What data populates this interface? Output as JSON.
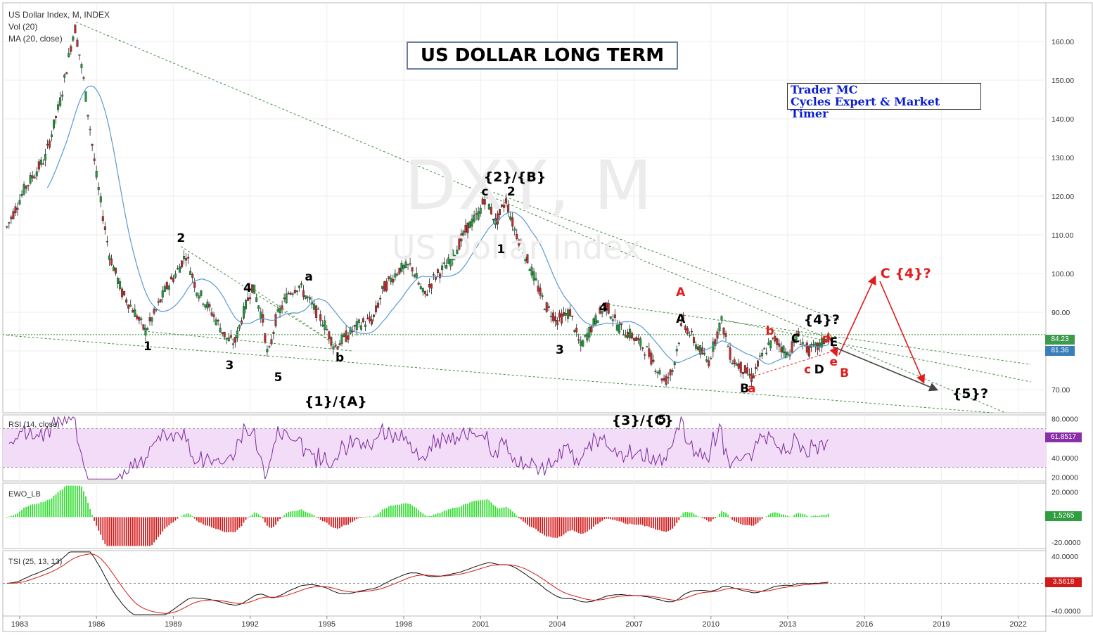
{
  "header": {
    "line1": "US Dollar Index, M, INDEX",
    "line2": "Vol (20)",
    "line3": "MA (20, close)"
  },
  "title": "US DOLLAR LONG TERM",
  "author": {
    "line1": "Trader MC",
    "line2": "Cycles Expert & Market Timer"
  },
  "watermark": {
    "symbol": "DXY, M",
    "name": "US Dollar Index"
  },
  "colors": {
    "bull": "#1e9e3a",
    "bear": "#c22b2b",
    "ma": "#5a9ad0",
    "trend": "#3d8a3d",
    "rsi": "#7a2b9a",
    "rsi_band": "#f3dcf7",
    "tsi": "#111111",
    "tsi_signal": "#d21a1a",
    "ewo_pos": "#33dd33",
    "ewo_neg": "#d21a1a",
    "projection_red": "#e21c1c",
    "projection_gray": "#444444"
  },
  "chart_data": [
    {
      "type": "candlestick",
      "name": "US Dollar Index",
      "x_labels": [
        "1983",
        "1986",
        "1989",
        "1992",
        "1995",
        "1998",
        "2001",
        "2004",
        "2007",
        "2010",
        "2013",
        "2016",
        "2019",
        "2022"
      ],
      "y_ticks": [
        "160.00",
        "150.00",
        "140.00",
        "130.00",
        "120.00",
        "110.00",
        "100.00",
        "90.00",
        "80.00",
        "70.00"
      ],
      "ylim": [
        64,
        170
      ],
      "price_path": [
        [
          1982.5,
          112
        ],
        [
          1983.2,
          122
        ],
        [
          1984,
          130
        ],
        [
          1984.6,
          145
        ],
        [
          1985.15,
          164
        ],
        [
          1985.5,
          150
        ],
        [
          1986,
          125
        ],
        [
          1986.5,
          105
        ],
        [
          1987,
          95
        ],
        [
          1987.5,
          90
        ],
        [
          1987.9,
          85
        ],
        [
          1988.3,
          90
        ],
        [
          1988.7,
          96
        ],
        [
          1989.1,
          100
        ],
        [
          1989.5,
          105
        ],
        [
          1989.9,
          96
        ],
        [
          1990.5,
          90
        ],
        [
          1991.1,
          83
        ],
        [
          1991.4,
          82
        ],
        [
          1991.7,
          89
        ],
        [
          1992.1,
          97
        ],
        [
          1992.5,
          88
        ],
        [
          1992.7,
          78
        ],
        [
          1993,
          88
        ],
        [
          1993.5,
          95
        ],
        [
          1993.9,
          97
        ],
        [
          1994.4,
          92
        ],
        [
          1994.9,
          87
        ],
        [
          1995.3,
          81
        ],
        [
          1995.8,
          84
        ],
        [
          1996.3,
          87
        ],
        [
          1996.8,
          88
        ],
        [
          1997.2,
          96
        ],
        [
          1997.8,
          101
        ],
        [
          1998.3,
          102
        ],
        [
          1998.8,
          94
        ],
        [
          1999.2,
          99
        ],
        [
          1999.8,
          103
        ],
        [
          2000.5,
          112
        ],
        [
          2000.9,
          115
        ],
        [
          2001.2,
          120
        ],
        [
          2001.6,
          113
        ],
        [
          2002,
          119
        ],
        [
          2002.3,
          112
        ],
        [
          2002.8,
          104
        ],
        [
          2003.5,
          92
        ],
        [
          2004,
          88
        ],
        [
          2004.5,
          90
        ],
        [
          2004.9,
          81
        ],
        [
          2005.5,
          88
        ],
        [
          2005.9,
          92
        ],
        [
          2006.4,
          86
        ],
        [
          2006.9,
          84
        ],
        [
          2007.5,
          80
        ],
        [
          2008.2,
          72
        ],
        [
          2008.5,
          75
        ],
        [
          2008.9,
          88
        ],
        [
          2009.2,
          84
        ],
        [
          2009.9,
          77
        ],
        [
          2010.4,
          88
        ],
        [
          2010.8,
          78
        ],
        [
          2011.3,
          75
        ],
        [
          2011.6,
          73
        ],
        [
          2012.1,
          80
        ],
        [
          2012.5,
          83
        ],
        [
          2013,
          79
        ],
        [
          2013.4,
          84
        ],
        [
          2013.8,
          80
        ],
        [
          2014.2,
          81
        ],
        [
          2014.6,
          84
        ]
      ],
      "ma_last": "81.36",
      "last_price": "84.23",
      "annotations": [
        {
          "text": "{2}/{B}",
          "x": 2002.0,
          "y": 125,
          "color": "black"
        },
        {
          "text": "{1}/{A}",
          "x": 1995.0,
          "y": 67,
          "color": "black"
        },
        {
          "text": "{3}/{C}",
          "x": 2007.0,
          "y": 62,
          "color": "black"
        },
        {
          "text": "{4}?",
          "x": 2014.5,
          "y": 88,
          "color": "black"
        },
        {
          "text": "{5}?",
          "x": 2020.3,
          "y": 69,
          "color": "black"
        },
        {
          "text": "C {4}?",
          "x": 2017.5,
          "y": 100,
          "color": "red"
        },
        {
          "text": "1",
          "x": 1988.0,
          "y": 81,
          "color": "black"
        },
        {
          "text": "2",
          "x": 1989.3,
          "y": 109,
          "color": "black"
        },
        {
          "text": "3",
          "x": 1991.2,
          "y": 76,
          "color": "black"
        },
        {
          "text": "4",
          "x": 1991.9,
          "y": 96,
          "color": "black"
        },
        {
          "text": "5",
          "x": 1993.1,
          "y": 73,
          "color": "black"
        },
        {
          "text": "a",
          "x": 1994.3,
          "y": 99,
          "color": "black"
        },
        {
          "text": "b",
          "x": 1995.5,
          "y": 78,
          "color": "black"
        },
        {
          "text": "c",
          "x": 2001.2,
          "y": 121,
          "color": "black"
        },
        {
          "text": "2",
          "x": 2002.2,
          "y": 121,
          "color": "black"
        },
        {
          "text": "1",
          "x": 2001.8,
          "y": 106,
          "color": "black"
        },
        {
          "text": "3",
          "x": 2004.1,
          "y": 80,
          "color": "black"
        },
        {
          "text": "4",
          "x": 2005.8,
          "y": 91,
          "color": "black"
        },
        {
          "text": "5",
          "x": 2008.1,
          "y": 62,
          "color": "black"
        },
        {
          "text": "A",
          "x": 2008.8,
          "y": 95,
          "color": "red"
        },
        {
          "text": "A",
          "x": 2008.8,
          "y": 88,
          "color": "black"
        },
        {
          "text": "B",
          "x": 2011.3,
          "y": 70,
          "color": "black"
        },
        {
          "text": "a",
          "x": 2011.6,
          "y": 70,
          "color": "red"
        },
        {
          "text": "b",
          "x": 2012.3,
          "y": 85,
          "color": "red"
        },
        {
          "text": "C",
          "x": 2013.3,
          "y": 83,
          "color": "black"
        },
        {
          "text": "c",
          "x": 2013.8,
          "y": 75,
          "color": "red"
        },
        {
          "text": "D",
          "x": 2014.2,
          "y": 75,
          "color": "black"
        },
        {
          "text": "d",
          "x": 2014.5,
          "y": 83,
          "color": "red"
        },
        {
          "text": "E",
          "x": 2014.8,
          "y": 82,
          "color": "black"
        },
        {
          "text": "e",
          "x": 2014.8,
          "y": 77,
          "color": "red"
        },
        {
          "text": "B",
          "x": 2015.2,
          "y": 74,
          "color": "red"
        }
      ]
    },
    {
      "type": "line",
      "name": "RSI (14, close)",
      "y_ticks": [
        "80.0000",
        "60.0000",
        "40.0000",
        "20.0000"
      ],
      "ylim": [
        16,
        84
      ],
      "band": [
        30,
        70
      ],
      "last_value": "61.8517"
    },
    {
      "type": "bar",
      "name": "EWO_LB",
      "y_ticks": [
        "20.0000",
        "-20.0000"
      ],
      "ylim": [
        -25,
        27
      ],
      "last_value": "1.5265"
    },
    {
      "type": "line",
      "name": "TSI (25, 13, 13)",
      "y_ticks": [
        "40.0000",
        "-40.0000"
      ],
      "ylim": [
        -48,
        48
      ],
      "last_value": "3.5618"
    }
  ]
}
